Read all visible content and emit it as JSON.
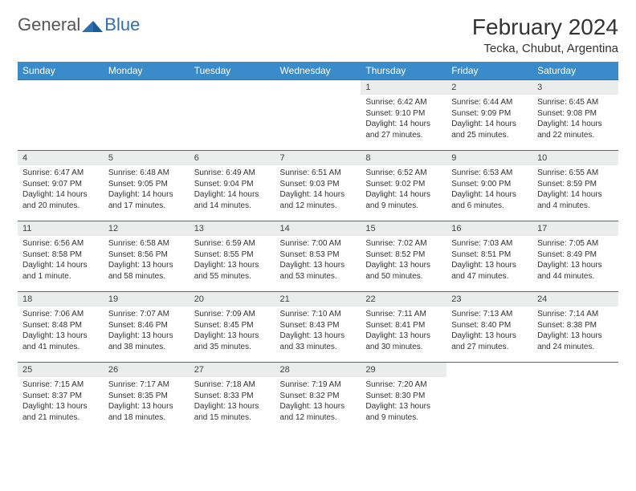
{
  "logo": {
    "text1": "General",
    "text2": "Blue"
  },
  "title": "February 2024",
  "location": "Tecka, Chubut, Argentina",
  "colors": {
    "header_bg": "#3a8bc9",
    "border": "#2d6fb3",
    "daynum_bg": "#ebecec",
    "text": "#333333",
    "logo_gray": "#555555",
    "logo_blue": "#2d6fb3"
  },
  "weekdays": [
    "Sunday",
    "Monday",
    "Tuesday",
    "Wednesday",
    "Thursday",
    "Friday",
    "Saturday"
  ],
  "weeks": [
    [
      null,
      null,
      null,
      null,
      {
        "n": "1",
        "sr": "6:42 AM",
        "ss": "9:10 PM",
        "dl": "14 hours and 27 minutes."
      },
      {
        "n": "2",
        "sr": "6:44 AM",
        "ss": "9:09 PM",
        "dl": "14 hours and 25 minutes."
      },
      {
        "n": "3",
        "sr": "6:45 AM",
        "ss": "9:08 PM",
        "dl": "14 hours and 22 minutes."
      }
    ],
    [
      {
        "n": "4",
        "sr": "6:47 AM",
        "ss": "9:07 PM",
        "dl": "14 hours and 20 minutes."
      },
      {
        "n": "5",
        "sr": "6:48 AM",
        "ss": "9:05 PM",
        "dl": "14 hours and 17 minutes."
      },
      {
        "n": "6",
        "sr": "6:49 AM",
        "ss": "9:04 PM",
        "dl": "14 hours and 14 minutes."
      },
      {
        "n": "7",
        "sr": "6:51 AM",
        "ss": "9:03 PM",
        "dl": "14 hours and 12 minutes."
      },
      {
        "n": "8",
        "sr": "6:52 AM",
        "ss": "9:02 PM",
        "dl": "14 hours and 9 minutes."
      },
      {
        "n": "9",
        "sr": "6:53 AM",
        "ss": "9:00 PM",
        "dl": "14 hours and 6 minutes."
      },
      {
        "n": "10",
        "sr": "6:55 AM",
        "ss": "8:59 PM",
        "dl": "14 hours and 4 minutes."
      }
    ],
    [
      {
        "n": "11",
        "sr": "6:56 AM",
        "ss": "8:58 PM",
        "dl": "14 hours and 1 minute."
      },
      {
        "n": "12",
        "sr": "6:58 AM",
        "ss": "8:56 PM",
        "dl": "13 hours and 58 minutes."
      },
      {
        "n": "13",
        "sr": "6:59 AM",
        "ss": "8:55 PM",
        "dl": "13 hours and 55 minutes."
      },
      {
        "n": "14",
        "sr": "7:00 AM",
        "ss": "8:53 PM",
        "dl": "13 hours and 53 minutes."
      },
      {
        "n": "15",
        "sr": "7:02 AM",
        "ss": "8:52 PM",
        "dl": "13 hours and 50 minutes."
      },
      {
        "n": "16",
        "sr": "7:03 AM",
        "ss": "8:51 PM",
        "dl": "13 hours and 47 minutes."
      },
      {
        "n": "17",
        "sr": "7:05 AM",
        "ss": "8:49 PM",
        "dl": "13 hours and 44 minutes."
      }
    ],
    [
      {
        "n": "18",
        "sr": "7:06 AM",
        "ss": "8:48 PM",
        "dl": "13 hours and 41 minutes."
      },
      {
        "n": "19",
        "sr": "7:07 AM",
        "ss": "8:46 PM",
        "dl": "13 hours and 38 minutes."
      },
      {
        "n": "20",
        "sr": "7:09 AM",
        "ss": "8:45 PM",
        "dl": "13 hours and 35 minutes."
      },
      {
        "n": "21",
        "sr": "7:10 AM",
        "ss": "8:43 PM",
        "dl": "13 hours and 33 minutes."
      },
      {
        "n": "22",
        "sr": "7:11 AM",
        "ss": "8:41 PM",
        "dl": "13 hours and 30 minutes."
      },
      {
        "n": "23",
        "sr": "7:13 AM",
        "ss": "8:40 PM",
        "dl": "13 hours and 27 minutes."
      },
      {
        "n": "24",
        "sr": "7:14 AM",
        "ss": "8:38 PM",
        "dl": "13 hours and 24 minutes."
      }
    ],
    [
      {
        "n": "25",
        "sr": "7:15 AM",
        "ss": "8:37 PM",
        "dl": "13 hours and 21 minutes."
      },
      {
        "n": "26",
        "sr": "7:17 AM",
        "ss": "8:35 PM",
        "dl": "13 hours and 18 minutes."
      },
      {
        "n": "27",
        "sr": "7:18 AM",
        "ss": "8:33 PM",
        "dl": "13 hours and 15 minutes."
      },
      {
        "n": "28",
        "sr": "7:19 AM",
        "ss": "8:32 PM",
        "dl": "13 hours and 12 minutes."
      },
      {
        "n": "29",
        "sr": "7:20 AM",
        "ss": "8:30 PM",
        "dl": "13 hours and 9 minutes."
      },
      null,
      null
    ]
  ],
  "labels": {
    "sunrise": "Sunrise: ",
    "sunset": "Sunset: ",
    "daylight": "Daylight: "
  }
}
